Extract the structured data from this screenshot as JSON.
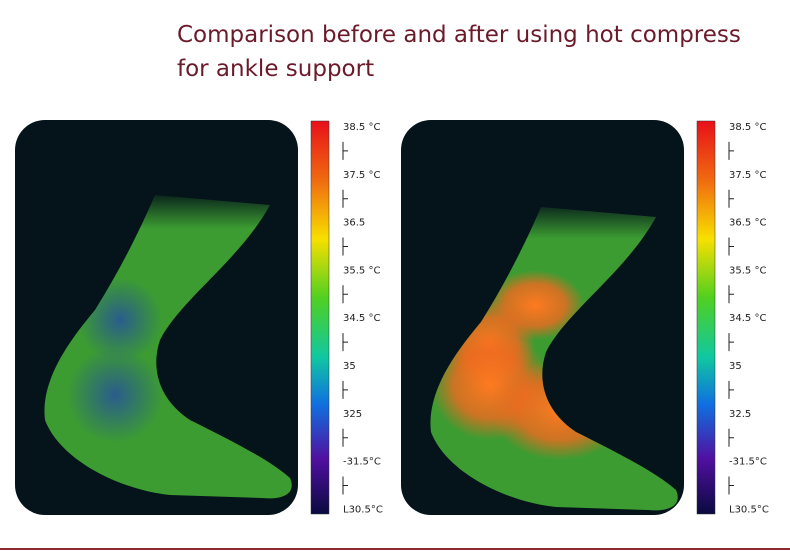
{
  "header": {
    "title_lines": [
      "Comparison before and after using hot compress",
      "for ankle support"
    ]
  },
  "panels": [
    {
      "scale_labels": [
        "38.5 °C",
        "37.5 °C",
        "36.5",
        "35.5 °C",
        "34.5 °C",
        "35",
        "325",
        "-31.5°C",
        "L30.5°C"
      ]
    },
    {
      "scale_labels": [
        "38.5 °C",
        "37.5 °C",
        "36.5 °C",
        "35.5 °C",
        "34.5 °C",
        "35",
        "32.5",
        "-31.5°C",
        "L30.5°C"
      ]
    }
  ]
}
